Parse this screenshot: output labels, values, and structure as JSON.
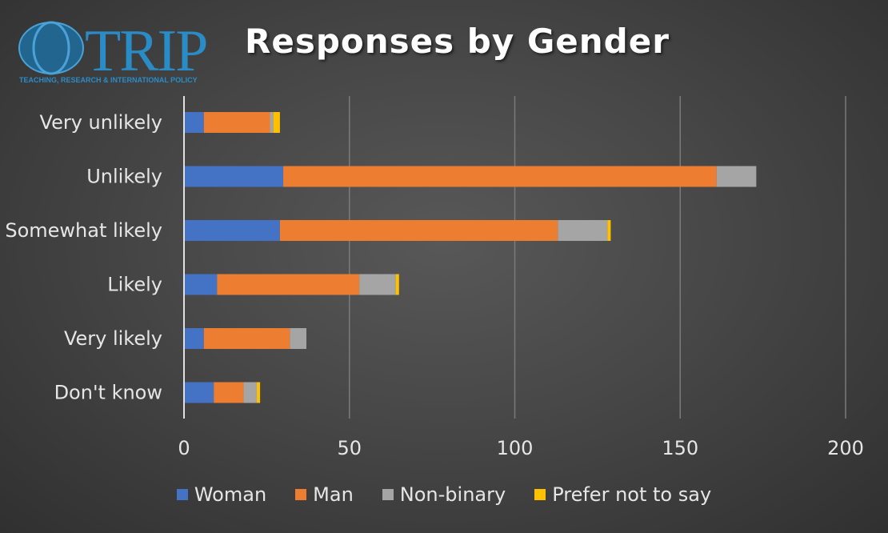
{
  "logo": {
    "text": "TRIP",
    "subtitle": "TEACHING, RESEARCH & INTERNATIONAL POLICY",
    "colors": {
      "circle": "#1e6fa0",
      "text": "#2a8cc7"
    }
  },
  "chart_data": {
    "type": "bar",
    "orientation": "horizontal",
    "stacked": true,
    "title": "Responses by Gender",
    "categories": [
      "Very unlikely",
      "Unlikely",
      "Somewhat likely",
      "Likely",
      "Very likely",
      "Don't know"
    ],
    "series": [
      {
        "name": "Woman",
        "color": "#4472c4",
        "values": [
          6,
          30,
          29,
          10,
          6,
          9
        ]
      },
      {
        "name": "Man",
        "color": "#ed7d31",
        "values": [
          20,
          131,
          84,
          43,
          26,
          9
        ]
      },
      {
        "name": "Non-binary",
        "color": "#a5a5a5",
        "values": [
          1,
          12,
          15,
          11,
          5,
          4
        ]
      },
      {
        "name": "Prefer not to say",
        "color": "#ffc000",
        "values": [
          2,
          0,
          1,
          1,
          0,
          1
        ]
      }
    ],
    "xlim": [
      0,
      200
    ],
    "xticks": [
      0,
      50,
      100,
      150,
      200
    ],
    "grid": true,
    "legend_position": "bottom"
  }
}
